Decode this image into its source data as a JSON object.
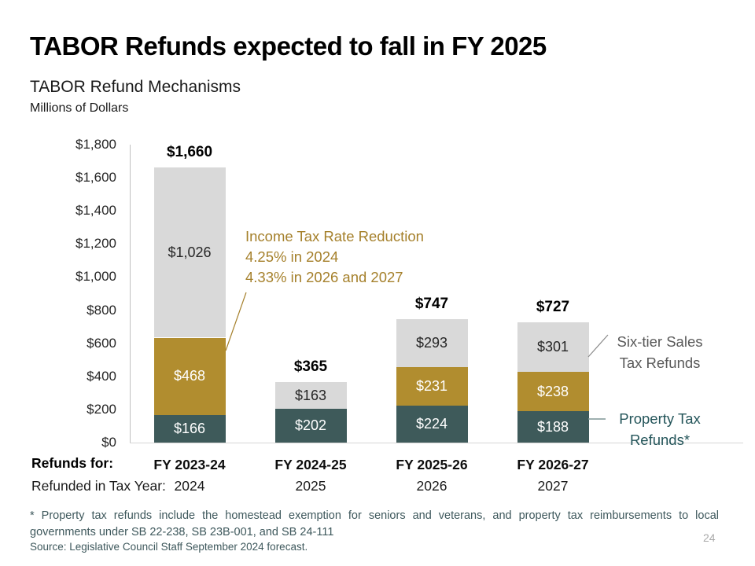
{
  "slide": {
    "title": "TABOR Refunds expected to fall in FY 2025",
    "page_number": "24",
    "footnote": "* Property tax refunds include the homestead exemption for seniors and veterans, and property tax reimbursements to local governments under SB 22-238, SB 23B-001, and SB 24-111",
    "source": "Source: Legislative Council Staff September 2024 forecast."
  },
  "chart_data": {
    "type": "bar",
    "stacked": true,
    "title": "TABOR Refund Mechanisms",
    "ylabel": "Millions of Dollars",
    "ylim": [
      0,
      1800
    ],
    "ytick_interval": 200,
    "ytick_labels": [
      "$0",
      "$200",
      "$400",
      "$600",
      "$800",
      "$1,000",
      "$1,200",
      "$1,400",
      "$1,600",
      "$1,800"
    ],
    "grid": false,
    "categories": [
      "FY 2023-24",
      "FY 2024-25",
      "FY 2025-26",
      "FY 2026-27"
    ],
    "series": [
      {
        "name": "Property Tax Refunds*",
        "color": "#3e5a5a",
        "label_color": "#ffffff",
        "values": [
          166,
          202,
          224,
          188
        ]
      },
      {
        "name": "Income Tax Rate Reduction",
        "color": "#b18d2f",
        "label_color": "#ffffff",
        "values": [
          468,
          0,
          231,
          238
        ]
      },
      {
        "name": "Six-tier Sales Tax Refunds",
        "color": "#d9d9d9",
        "label_color": "#262626",
        "values": [
          1026,
          163,
          293,
          301
        ]
      }
    ],
    "totals": [
      1660,
      365,
      747,
      727
    ],
    "total_labels": [
      "$1,660",
      "$365",
      "$747",
      "$727"
    ]
  },
  "axis_rows": {
    "refunds_for_label": "Refunds for:",
    "tax_year_label": "Refunded in Tax Year:",
    "tax_years": [
      "2024",
      "2025",
      "2026",
      "2027"
    ]
  },
  "annotations": {
    "income": {
      "color": "#a5802b",
      "lines": [
        "Income Tax Rate Reduction",
        "4.25% in 2024",
        "4.33% in 2026 and 2027"
      ]
    },
    "sales": {
      "color": "#595959",
      "lines": [
        "Six-tier Sales",
        "Tax Refunds"
      ]
    },
    "property": {
      "color": "#24555a",
      "lines": [
        "Property Tax",
        "Refunds*"
      ]
    }
  }
}
